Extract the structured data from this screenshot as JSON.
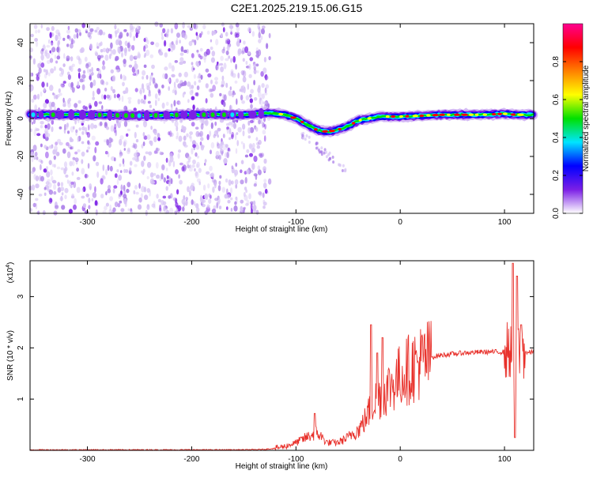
{
  "title": "C2E1.2025.219.15.06.G15",
  "chart_data": [
    {
      "type": "heatmap",
      "xlabel": "Height of straight line (km)",
      "ylabel": "Frequency (Hz)",
      "xlim": [
        -355,
        128
      ],
      "ylim": [
        -50,
        50
      ],
      "xticks": [
        -300,
        -200,
        -100,
        0,
        100
      ],
      "yticks": [
        -40,
        -20,
        0,
        20,
        40
      ],
      "colorbar": {
        "label": "Normalized spectral amplitude",
        "range": [
          0,
          1
        ],
        "ticks": [
          "0.0",
          "0.2",
          "0.4",
          "0.6",
          "0.8"
        ],
        "colors": [
          "#ffffff",
          "#d7c4f5",
          "#7b1fe6",
          "#0000ff",
          "#00e5ff",
          "#00e000",
          "#ffff00",
          "#ff0000",
          "#ff0090"
        ]
      },
      "ridge": {
        "x": [
          -355,
          -300,
          -250,
          -200,
          -150,
          -125,
          -110,
          -100,
          -90,
          -80,
          -70,
          -60,
          -50,
          -40,
          -30,
          -20,
          -10,
          0,
          20,
          40,
          60,
          80,
          100,
          110,
          128
        ],
        "y": [
          2,
          2,
          1.5,
          2,
          2,
          3,
          2,
          0,
          -3,
          -6,
          -7,
          -6,
          -4,
          -1,
          0,
          1,
          1,
          1,
          1.5,
          2,
          2,
          2,
          2.5,
          2,
          2
        ]
      },
      "noise_region_x": [
        -355,
        -125
      ]
    },
    {
      "type": "line",
      "xlabel": "Height of straight line (km)",
      "ylabel": "SNR (10 * v/v)",
      "y_multiplier": "(x10",
      "y_multiplier_exp": "4",
      "y_multiplier_close": ")",
      "xlim": [
        -355,
        128
      ],
      "ylim": [
        0,
        3.7
      ],
      "xticks": [
        -300,
        -200,
        -100,
        0,
        100
      ],
      "yticks": [
        1,
        2,
        3
      ],
      "series": [
        {
          "color": "#e8302a",
          "x": [
            -355,
            -300,
            -250,
            -200,
            -150,
            -130,
            -120,
            -110,
            -100,
            -90,
            -80,
            -70,
            -60,
            -50,
            -45,
            -40,
            -35,
            -30,
            -25,
            -20,
            -15,
            -10,
            -5,
            0,
            5,
            10,
            15,
            20,
            25,
            30,
            40,
            60,
            80,
            100,
            105,
            108,
            110,
            112,
            115,
            118,
            122,
            128
          ],
          "y": [
            0.01,
            0.01,
            0.01,
            0.01,
            0.01,
            0.02,
            0.04,
            0.08,
            0.15,
            0.25,
            0.35,
            0.15,
            0.15,
            0.25,
            0.35,
            0.4,
            0.55,
            0.75,
            0.95,
            1.05,
            1.15,
            1.25,
            1.35,
            1.45,
            1.55,
            1.6,
            1.68,
            1.72,
            1.78,
            1.82,
            1.86,
            1.9,
            1.92,
            1.92,
            1.95,
            2.1,
            1.2,
            2.3,
            1.85,
            1.95,
            1.9,
            1.92
          ]
        }
      ],
      "spikes": [
        {
          "x": -82,
          "y": 0.72
        },
        {
          "x": -28,
          "y": 2.45
        },
        {
          "x": -22,
          "y": 1.9
        },
        {
          "x": -17,
          "y": 2.2
        },
        {
          "x": 108,
          "y": 3.65
        },
        {
          "x": 110,
          "y": 0.25
        },
        {
          "x": 112,
          "y": 3.4
        },
        {
          "x": 116,
          "y": 2.45
        }
      ]
    }
  ]
}
